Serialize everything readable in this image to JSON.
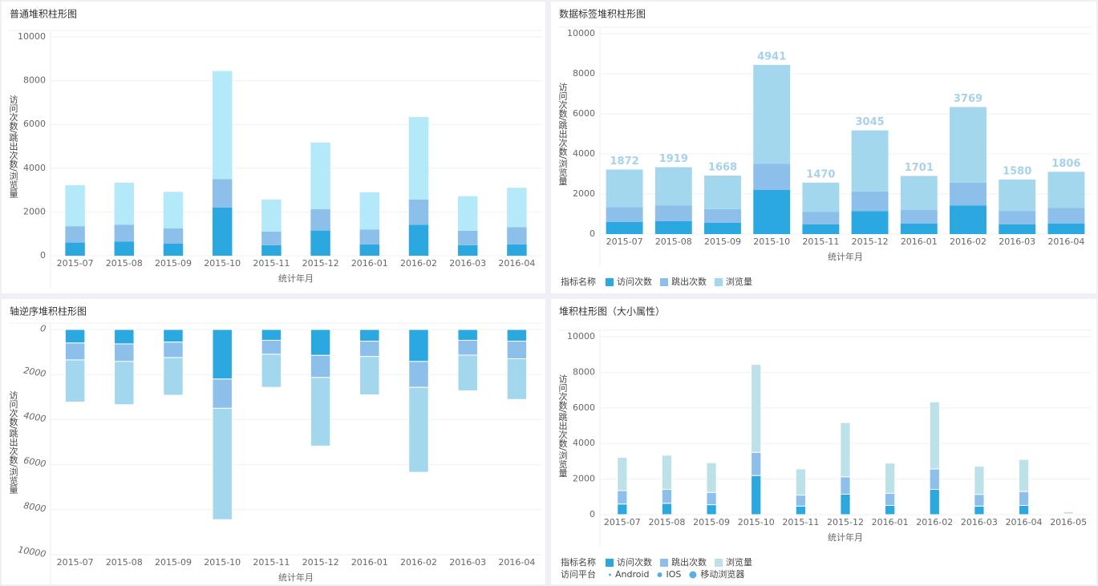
{
  "chart_data": [
    {
      "type": "bar",
      "title": "普通堆积柱形图",
      "x_label": "统计年月",
      "y_label": "访问次数/跳出次数/浏览量",
      "categories": [
        "2015-07",
        "2015-08",
        "2015-09",
        "2015-10",
        "2015-11",
        "2015-12",
        "2016-01",
        "2016-02",
        "2016-03",
        "2016-04"
      ],
      "series": [
        {
          "name": "访问次数",
          "color": "#2ba8e0",
          "values": [
            600,
            640,
            560,
            2200,
            480,
            1150,
            520,
            1420,
            480,
            520
          ]
        },
        {
          "name": "跳出次数",
          "color": "#8cbfe9",
          "values": [
            750,
            780,
            690,
            1300,
            620,
            980,
            680,
            1150,
            660,
            780
          ]
        },
        {
          "name": "浏览量",
          "color": "#b3e9f8",
          "values": [
            1872,
            1919,
            1668,
            4941,
            1470,
            3045,
            1701,
            3769,
            1580,
            1806
          ]
        }
      ],
      "ylim": [
        0,
        10000
      ],
      "yticks": [
        0,
        2000,
        4000,
        6000,
        8000,
        10000
      ],
      "grid": true
    },
    {
      "type": "bar",
      "title": "数据标签堆积柱形图",
      "x_label": "统计年月",
      "y_label": "访问次数/跳出次数/浏览量",
      "legend_title": "指标名称",
      "data_labels": true,
      "categories": [
        "2015-07",
        "2015-08",
        "2015-09",
        "2015-10",
        "2015-11",
        "2015-12",
        "2016-01",
        "2016-02",
        "2016-03",
        "2016-04"
      ],
      "series": [
        {
          "name": "访问次数",
          "color": "#2ba8e0",
          "values": [
            600,
            640,
            560,
            2200,
            480,
            1150,
            520,
            1420,
            480,
            520
          ]
        },
        {
          "name": "跳出次数",
          "color": "#8cbfe9",
          "values": [
            750,
            780,
            690,
            1300,
            620,
            980,
            680,
            1150,
            660,
            780
          ]
        },
        {
          "name": "浏览量",
          "color": "#a2d7ee",
          "values": [
            1872,
            1919,
            1668,
            4941,
            1470,
            3045,
            1701,
            3769,
            1580,
            1806
          ]
        }
      ],
      "ylim": [
        0,
        10000
      ],
      "yticks": [
        0,
        2000,
        4000,
        6000,
        8000,
        10000
      ],
      "grid": true
    },
    {
      "type": "bar",
      "title": "轴逆序堆积柱形图",
      "x_label": "统计年月",
      "y_label": "访问次数/跳出次数/浏览量",
      "reversed": true,
      "categories": [
        "2015-07",
        "2015-08",
        "2015-09",
        "2015-10",
        "2015-11",
        "2015-12",
        "2016-01",
        "2016-02",
        "2016-03",
        "2016-04"
      ],
      "series": [
        {
          "name": "访问次数",
          "color": "#2ba8e0",
          "values": [
            600,
            640,
            560,
            2200,
            480,
            1150,
            520,
            1420,
            480,
            520
          ]
        },
        {
          "name": "跳出次数",
          "color": "#8cbfe9",
          "values": [
            750,
            780,
            690,
            1300,
            620,
            980,
            680,
            1150,
            660,
            780
          ]
        },
        {
          "name": "浏览量",
          "color": "#a2d7ee",
          "values": [
            1872,
            1919,
            1668,
            4941,
            1470,
            3045,
            1701,
            3769,
            1580,
            1806
          ]
        }
      ],
      "ylim": [
        0,
        10000
      ],
      "yticks": [
        0,
        2000,
        4000,
        6000,
        8000,
        10000
      ],
      "grid": true
    },
    {
      "type": "bar",
      "title": "堆积柱形图（大小属性）",
      "x_label": "统计年月",
      "y_label": "访问次数/跳出次数/浏览量",
      "legend_title": "指标名称",
      "size_legend": {
        "title": "访问平台",
        "items": [
          "Android",
          "IOS",
          "移动浏览器"
        ]
      },
      "categories": [
        "2015-07",
        "2015-08",
        "2015-09",
        "2015-10",
        "2015-11",
        "2015-12",
        "2016-01",
        "2016-02",
        "2016-03",
        "2016-04",
        "2016-05"
      ],
      "series": [
        {
          "name": "访问次数",
          "color": "#2ba8e0",
          "values": [
            600,
            640,
            560,
            2200,
            480,
            1150,
            520,
            1420,
            480,
            520,
            20
          ]
        },
        {
          "name": "跳出次数",
          "color": "#8cbfe9",
          "values": [
            750,
            780,
            690,
            1300,
            620,
            980,
            680,
            1150,
            660,
            780,
            20
          ]
        },
        {
          "name": "浏览量",
          "color": "#bde1e8",
          "values": [
            1872,
            1919,
            1668,
            4941,
            1470,
            3045,
            1701,
            3769,
            1580,
            1806,
            120
          ]
        }
      ],
      "ylim": [
        0,
        10000
      ],
      "yticks": [
        0,
        2000,
        4000,
        6000,
        8000,
        10000
      ],
      "grid": true
    }
  ]
}
